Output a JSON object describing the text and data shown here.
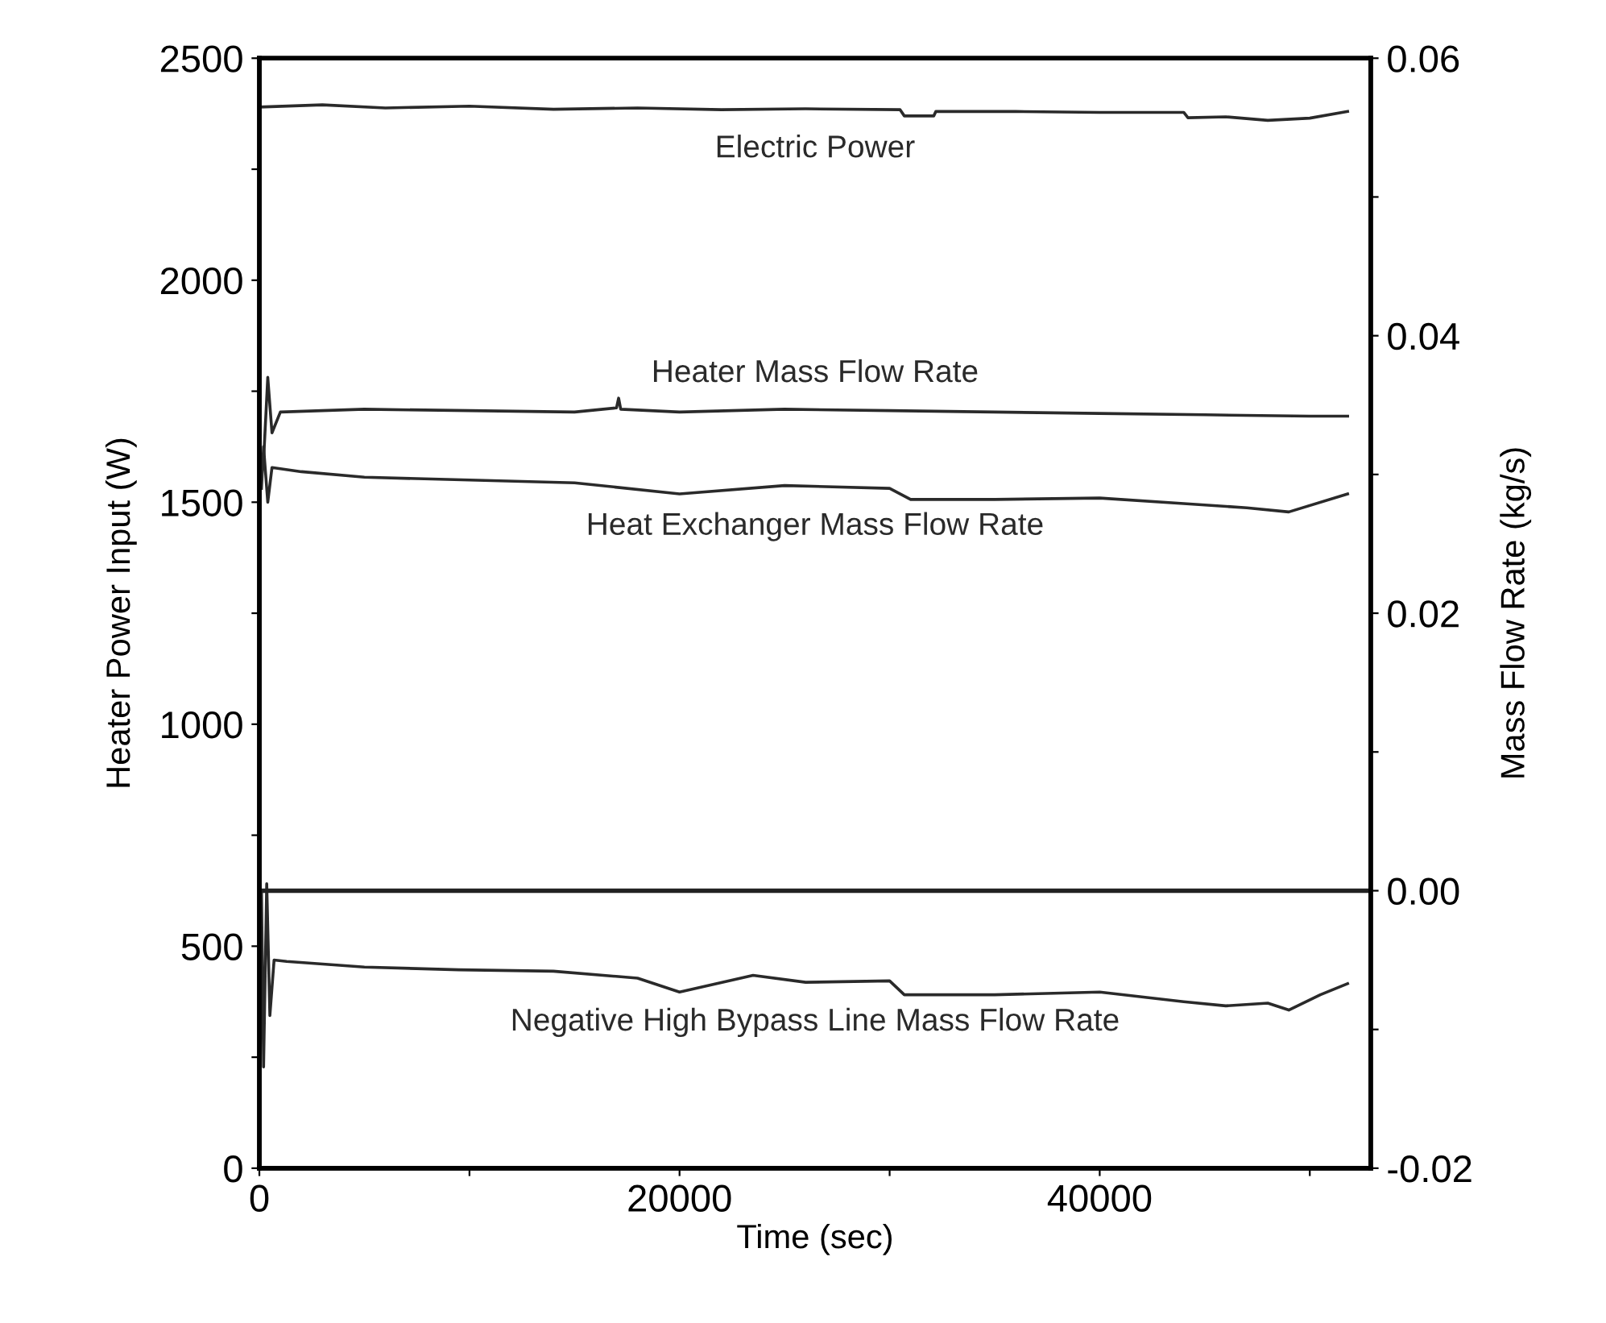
{
  "chart_data": {
    "type": "line",
    "xlabel": "Time (sec)",
    "ylabel": "Heater Power Input (W)",
    "y2label": "Mass Flow Rate (kg/s)",
    "xlim": [
      0,
      52900
    ],
    "xticks": [
      0,
      {
        "value": 10000,
        "label": null
      },
      20000,
      {
        "value": 30000,
        "label": null
      },
      40000,
      {
        "value": 50000,
        "label": null
      }
    ],
    "ylim": [
      0,
      2500
    ],
    "yticks": [
      0,
      {
        "value": 250,
        "label": null
      },
      500,
      {
        "value": 750,
        "label": null
      },
      1000,
      {
        "value": 1250,
        "label": null
      },
      1500,
      {
        "value": 1750,
        "label": null
      },
      2000,
      {
        "value": 2250,
        "label": null
      },
      2500
    ],
    "y2lim": [
      -0.02,
      0.06
    ],
    "y2ticks": [
      {
        "value": -0.02,
        "label": "-0.02"
      },
      {
        "value": -0.01,
        "label": null
      },
      {
        "value": 0,
        "label": "0.00"
      },
      {
        "value": 0.01,
        "label": null
      },
      {
        "value": 0.02,
        "label": "0.02"
      },
      {
        "value": 0.03,
        "label": null
      },
      {
        "value": 0.04,
        "label": "0.04"
      },
      {
        "value": 0.05,
        "label": null
      },
      {
        "value": 0.06,
        "label": "0.06"
      }
    ],
    "grid": false,
    "legend": false,
    "ref_lines": [
      {
        "axis": "y2",
        "value": 0,
        "color": "#222222"
      }
    ],
    "series": [
      {
        "name": "Electric Power",
        "color": "#2a2a2a",
        "x": [
          0,
          3000,
          6000,
          10000,
          14000,
          18000,
          22000,
          26000,
          30500,
          30700,
          32100,
          32200,
          36000,
          40000,
          44000,
          44200,
          46000,
          48000,
          50000,
          51800
        ],
        "values": [
          2390,
          2395,
          2388,
          2392,
          2385,
          2388,
          2384,
          2386,
          2384,
          2370,
          2370,
          2380,
          2380,
          2378,
          2378,
          2366,
          2368,
          2360,
          2365,
          2380
        ]
      },
      {
        "name": "Heater Mass Flow Rate",
        "color": "#2a2a2a",
        "axis": "y2",
        "x": [
          200,
          400,
          600,
          1000,
          5000,
          10000,
          15000,
          17000,
          17100,
          17200,
          20000,
          25000,
          30000,
          35000,
          40000,
          45000,
          50000,
          51800
        ],
        "values": [
          0.031,
          0.037,
          0.033,
          0.0345,
          0.0347,
          0.0346,
          0.0345,
          0.0348,
          0.0355,
          0.0347,
          0.0345,
          0.0347,
          0.0346,
          0.0345,
          0.0344,
          0.0343,
          0.0342,
          0.0342
        ]
      },
      {
        "name": "Heat Exchanger Mass Flow Rate",
        "color": "#2a2a2a",
        "axis": "y2",
        "x": [
          100,
          200,
          400,
          600,
          2000,
          5000,
          10000,
          15000,
          20000,
          25000,
          30000,
          31000,
          35000,
          40000,
          44000,
          47000,
          49000,
          51800
        ],
        "values": [
          0.029,
          0.032,
          0.028,
          0.0305,
          0.0302,
          0.0298,
          0.0296,
          0.0294,
          0.0286,
          0.0292,
          0.029,
          0.0282,
          0.0282,
          0.0283,
          0.0279,
          0.0276,
          0.0273,
          0.0286
        ]
      },
      {
        "name": "Negative High Bypass Line Mass Flow Rate",
        "color": "#2a2a2a",
        "axis": "y2",
        "x": [
          100,
          200,
          350,
          500,
          700,
          1300,
          5000,
          9500,
          14000,
          18000,
          20000,
          23500,
          26000,
          30000,
          30700,
          35000,
          40000,
          44000,
          46000,
          48000,
          49000,
          50500,
          51800
        ],
        "values": [
          0.0,
          -0.0127,
          0.0005,
          -0.009,
          -0.005,
          -0.0051,
          -0.0055,
          -0.0057,
          -0.0058,
          -0.0063,
          -0.0073,
          -0.0061,
          -0.0066,
          -0.0065,
          -0.0075,
          -0.0075,
          -0.0073,
          -0.008,
          -0.0083,
          -0.0081,
          -0.0086,
          -0.0075,
          -0.0067
        ]
      }
    ]
  }
}
